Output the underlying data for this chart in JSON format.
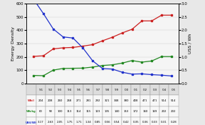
{
  "years": [
    "'91",
    "'92",
    "'93",
    "'94",
    "'95",
    "'96",
    "'97",
    "'98",
    "'99",
    "'00",
    "'01",
    "'02",
    "'03",
    "'04",
    "'05"
  ],
  "wh_l": [
    204,
    208,
    260,
    268,
    271,
    281,
    292,
    321,
    348,
    380,
    408,
    471,
    471,
    514,
    514
  ],
  "wh_kg": [
    60,
    58,
    100,
    113,
    114,
    115,
    123,
    135,
    140,
    153,
    172,
    160,
    169,
    202,
    202
  ],
  "usd_wh": [
    3.17,
    2.63,
    2.05,
    1.75,
    1.71,
    1.34,
    0.85,
    0.56,
    0.54,
    0.42,
    0.35,
    0.36,
    0.33,
    0.31,
    0.28
  ],
  "left_ylabel": "Energy Density",
  "right_ylabel": "USS / Wh",
  "left_ylim": [
    0,
    600
  ],
  "right_ylim": [
    0,
    3
  ],
  "left_yticks": [
    0,
    100,
    200,
    300,
    400,
    500,
    600
  ],
  "right_yticks": [
    0,
    0.5,
    1.0,
    1.5,
    2.0,
    2.5,
    3.0
  ],
  "color_red": "#cc2222",
  "color_green": "#228822",
  "color_blue": "#2233cc",
  "bg_color": "#e8e8e8",
  "plot_bg": "#f5f5f5",
  "legend_labels": [
    "Wh/l",
    "Wh/kg",
    "US$/Wh"
  ],
  "table_row0": [
    "Wh/l",
    "204",
    "208",
    "260",
    "268",
    "271",
    "281",
    "292",
    "321",
    "348",
    "380",
    "408",
    "471",
    "471",
    "514",
    "514"
  ],
  "table_row1": [
    "Wh/kg",
    "60",
    "58",
    "100",
    "113",
    "114",
    "115",
    "123",
    "135",
    "140",
    "153",
    "172",
    "160",
    "169",
    "202",
    "202"
  ],
  "table_row2": [
    "US$/Wh",
    "3.17",
    "2.63",
    "2.05",
    "1.75",
    "1.71",
    "1.34",
    "0.85",
    "0.56",
    "0.54",
    "0.42",
    "0.35",
    "0.36",
    "0.33",
    "0.31",
    "0.28"
  ]
}
